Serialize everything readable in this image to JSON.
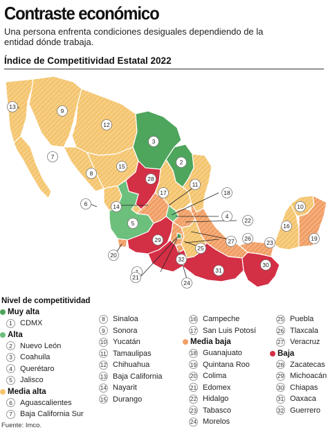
{
  "header": {
    "title": "Contraste económico",
    "subtitle": "Una persona enfrenta condiciones desiguales dependiendo de la entidad dónde trabaja.",
    "map_title": "Índice de Competitividad Estatal 2022"
  },
  "colors": {
    "muy_alta": "#4ea55c",
    "alta": "#6cc07c",
    "media_alta": "#f4c56f",
    "media_baja": "#f19f66",
    "baja": "#d32f45"
  },
  "legend": {
    "title": "Nivel de competitividad",
    "categories": [
      {
        "label": "Muy alta",
        "color": "#4ea55c",
        "items": [
          {
            "n": "1",
            "name": "CDMX"
          }
        ]
      },
      {
        "label": "Alta",
        "color": "#6cc07c",
        "items": [
          {
            "n": "2",
            "name": "Nuevo León"
          },
          {
            "n": "3",
            "name": "Coahuila"
          },
          {
            "n": "4",
            "name": "Querétaro"
          },
          {
            "n": "5",
            "name": "Jalisco"
          }
        ]
      },
      {
        "label": "Media alta",
        "color": "#f4c56f",
        "items": [
          {
            "n": "6",
            "name": "Aguascalientes"
          },
          {
            "n": "7",
            "name": "Baja California Sur"
          },
          {
            "n": "8",
            "name": "Sinaloa"
          },
          {
            "n": "9",
            "name": "Sonora"
          },
          {
            "n": "10",
            "name": "Yucatán"
          },
          {
            "n": "11",
            "name": "Tamaulipas"
          },
          {
            "n": "12",
            "name": "Chihuahua"
          },
          {
            "n": "13",
            "name": "Baja California"
          },
          {
            "n": "14",
            "name": "Nayarit"
          },
          {
            "n": "15",
            "name": "Durango"
          },
          {
            "n": "16",
            "name": "Campeche"
          },
          {
            "n": "17",
            "name": "San Luis Potosí"
          }
        ]
      },
      {
        "label": "Media baja",
        "color": "#f19f66",
        "items": [
          {
            "n": "18",
            "name": "Guanajuato"
          },
          {
            "n": "19",
            "name": "Quintana Roo"
          },
          {
            "n": "20",
            "name": "Colima"
          },
          {
            "n": "21",
            "name": "Edomex"
          },
          {
            "n": "22",
            "name": "Hidalgo"
          },
          {
            "n": "23",
            "name": "Tabasco"
          },
          {
            "n": "24",
            "name": "Morelos"
          },
          {
            "n": "25",
            "name": "Puebla"
          },
          {
            "n": "26",
            "name": "Tlaxcala"
          },
          {
            "n": "27",
            "name": "Veracruz"
          }
        ]
      },
      {
        "label": "Baja",
        "color": "#d32f45",
        "items": [
          {
            "n": "28",
            "name": "Zacatecas"
          },
          {
            "n": "29",
            "name": "Michoacán"
          },
          {
            "n": "30",
            "name": "Chiapas"
          },
          {
            "n": "31",
            "name": "Oaxaca"
          },
          {
            "n": "32",
            "name": "Guerrero"
          }
        ]
      }
    ]
  },
  "source": "Fuente: Imco."
}
